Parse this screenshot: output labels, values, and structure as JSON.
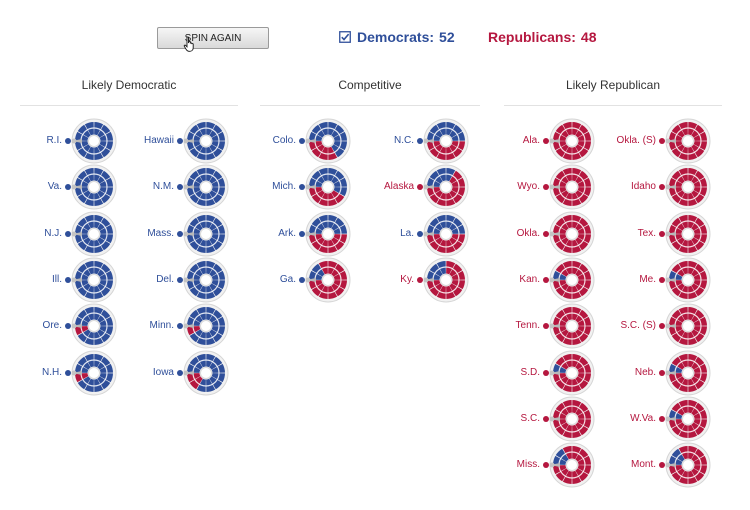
{
  "header": {
    "spin_button_label": "SPIN AGAIN",
    "democrats_label": "Democrats:",
    "democrats_seats": "52",
    "republicans_label": "Republicans:",
    "republicans_seats": "48"
  },
  "colors": {
    "democrat": "#2f4f9a",
    "republican": "#b5173f"
  },
  "icons": {
    "cursor": "hand-pointer-icon",
    "check": "checkbox-checked-icon",
    "spinner": "roulette-wheel-icon"
  },
  "columns": [
    {
      "title": "Likely Democratic",
      "states": [
        {
          "name": "R.I.",
          "winner": "dem",
          "dem_share": 1.0
        },
        {
          "name": "Hawaii",
          "winner": "dem",
          "dem_share": 1.0
        },
        {
          "name": "Va.",
          "winner": "dem",
          "dem_share": 1.0
        },
        {
          "name": "N.M.",
          "winner": "dem",
          "dem_share": 1.0
        },
        {
          "name": "N.J.",
          "winner": "dem",
          "dem_share": 1.0
        },
        {
          "name": "Mass.",
          "winner": "dem",
          "dem_share": 1.0
        },
        {
          "name": "Ill.",
          "winner": "dem",
          "dem_share": 1.0
        },
        {
          "name": "Del.",
          "winner": "dem",
          "dem_share": 1.0
        },
        {
          "name": "Ore.",
          "winner": "dem",
          "dem_share": 0.95
        },
        {
          "name": "Minn.",
          "winner": "dem",
          "dem_share": 0.95
        },
        {
          "name": "N.H.",
          "winner": "dem",
          "dem_share": 0.9
        },
        {
          "name": "Iowa",
          "winner": "dem",
          "dem_share": 0.8
        }
      ]
    },
    {
      "title": "Competitive",
      "states": [
        {
          "name": "Colo.",
          "winner": "dem",
          "dem_share": 0.7
        },
        {
          "name": "N.C.",
          "winner": "dem",
          "dem_share": 0.5
        },
        {
          "name": "Mich.",
          "winner": "dem",
          "dem_share": 0.55
        },
        {
          "name": "Alaska",
          "winner": "rep",
          "dem_share": 0.35
        },
        {
          "name": "Ark.",
          "winner": "dem",
          "dem_share": 0.5
        },
        {
          "name": "La.",
          "winner": "dem",
          "dem_share": 0.5
        },
        {
          "name": "Ga.",
          "winner": "dem",
          "dem_share": 0.2
        },
        {
          "name": "Ky.",
          "winner": "rep",
          "dem_share": 0.25
        }
      ]
    },
    {
      "title": "Likely Republican",
      "states": [
        {
          "name": "Ala.",
          "winner": "rep",
          "dem_share": 0.0
        },
        {
          "name": "Okla. (S)",
          "winner": "rep",
          "dem_share": 0.0
        },
        {
          "name": "Wyo.",
          "winner": "rep",
          "dem_share": 0.0
        },
        {
          "name": "Idaho",
          "winner": "rep",
          "dem_share": 0.0
        },
        {
          "name": "Okla.",
          "winner": "rep",
          "dem_share": 0.0
        },
        {
          "name": "Tex.",
          "winner": "rep",
          "dem_share": 0.0
        },
        {
          "name": "Kan.",
          "winner": "rep",
          "dem_share": 0.05
        },
        {
          "name": "Me.",
          "winner": "rep",
          "dem_share": 0.05
        },
        {
          "name": "Tenn.",
          "winner": "rep",
          "dem_share": 0.0
        },
        {
          "name": "S.C. (S)",
          "winner": "rep",
          "dem_share": 0.0
        },
        {
          "name": "S.D.",
          "winner": "rep",
          "dem_share": 0.05
        },
        {
          "name": "Neb.",
          "winner": "rep",
          "dem_share": 0.05
        },
        {
          "name": "S.C.",
          "winner": "rep",
          "dem_share": 0.0
        },
        {
          "name": "W.Va.",
          "winner": "rep",
          "dem_share": 0.05
        },
        {
          "name": "Miss.",
          "winner": "rep",
          "dem_share": 0.15
        },
        {
          "name": "Mont.",
          "winner": "rep",
          "dem_share": 0.15
        }
      ]
    }
  ]
}
